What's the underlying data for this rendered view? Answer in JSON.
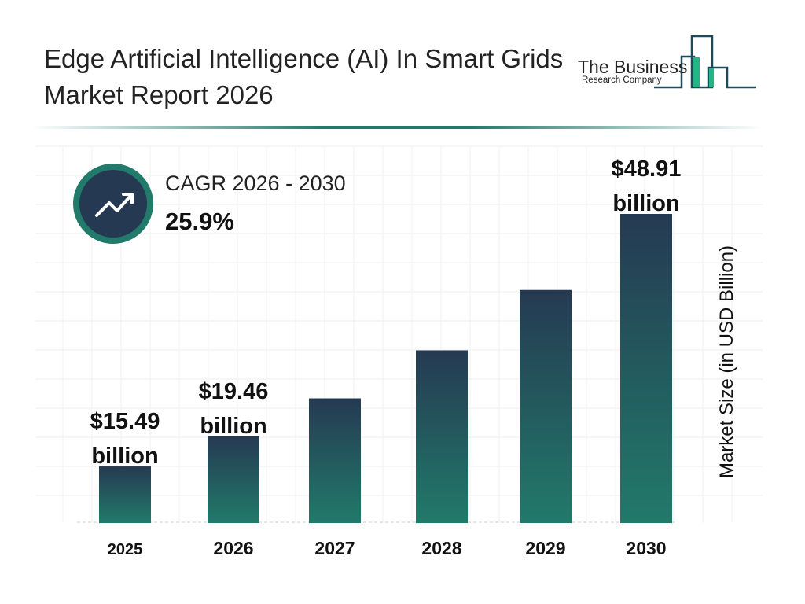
{
  "title": "Edge Artificial Intelligence (AI) In Smart Grids Market Report 2026",
  "logo": {
    "line1": "The Business",
    "line2": "Research Company"
  },
  "cagr": {
    "label": "CAGR 2026 - 2030",
    "value": "25.9%",
    "icon": "trending-up-icon"
  },
  "colors": {
    "bar_top": "#253a52",
    "bar_bottom": "#217a6a",
    "accent": "#217a6a"
  },
  "chart_data": {
    "type": "bar",
    "categories": [
      "2025",
      "2026",
      "2027",
      "2028",
      "2029",
      "2030"
    ],
    "values": [
      15.49,
      19.46,
      24.5,
      30.85,
      38.84,
      48.91
    ],
    "data_labels": [
      "$15.49 billion",
      "$19.46 billion",
      "",
      "",
      "",
      "$48.91 billion"
    ],
    "ylabel": "Market Size (in USD Billion)",
    "xlabel": "",
    "grid": true
  }
}
